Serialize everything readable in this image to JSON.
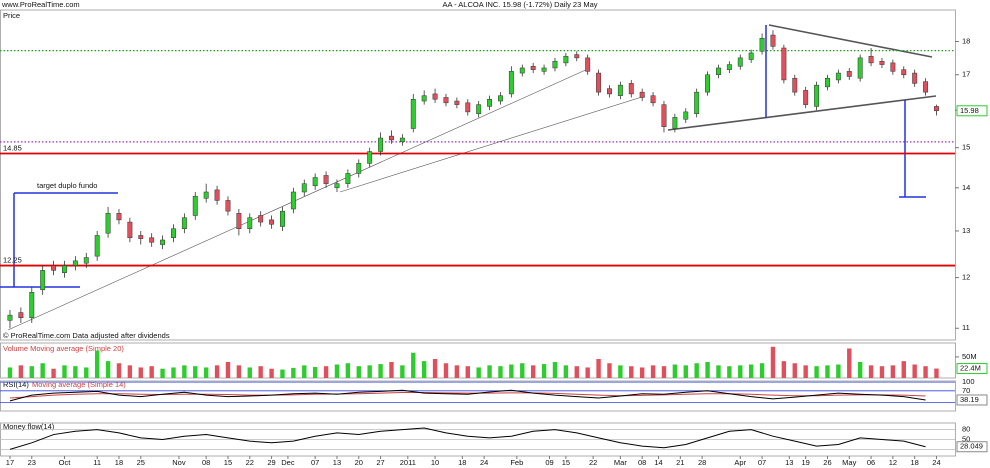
{
  "chart_data": {
    "type": "candlestick",
    "source": "www.ProRealTime.com",
    "title": "AA - ALCOA INC.   15.98 (-1.72%)   Daily  23 May",
    "price_label": "Price",
    "note": "© ProRealTime.com Data adjusted after dividends",
    "annotation": "target duplo fundo",
    "log_scale": true,
    "up_color": "#2ecc2e",
    "down_color": "#e0505c",
    "xlim": [
      -1.83,
      173.4
    ],
    "xticks": [
      {
        "value": 0,
        "label": "17"
      },
      {
        "value": 4,
        "label": "23"
      },
      {
        "value": 10,
        "label": "Oct"
      },
      {
        "value": 16,
        "label": "11"
      },
      {
        "value": 20,
        "label": "18"
      },
      {
        "value": 24,
        "label": "25"
      },
      {
        "value": 31,
        "label": "Nov"
      },
      {
        "value": 36,
        "label": "08"
      },
      {
        "value": 40,
        "label": "15"
      },
      {
        "value": 44,
        "label": "22"
      },
      {
        "value": 48,
        "label": "29"
      },
      {
        "value": 51,
        "label": "Dec"
      },
      {
        "value": 56,
        "label": "07"
      },
      {
        "value": 60,
        "label": "13"
      },
      {
        "value": 64,
        "label": "20"
      },
      {
        "value": 68,
        "label": "27"
      },
      {
        "value": 73,
        "label": "2011"
      },
      {
        "value": 78,
        "label": "10"
      },
      {
        "value": 83,
        "label": "18"
      },
      {
        "value": 87,
        "label": "24"
      },
      {
        "value": 93,
        "label": "Feb"
      },
      {
        "value": 99,
        "label": "09"
      },
      {
        "value": 102,
        "label": "15"
      },
      {
        "value": 107,
        "label": "22"
      },
      {
        "value": 112,
        "label": "Mar"
      },
      {
        "value": 116,
        "label": "08"
      },
      {
        "value": 119,
        "label": "14"
      },
      {
        "value": 123,
        "label": "21"
      },
      {
        "value": 127,
        "label": "28"
      },
      {
        "value": 134,
        "label": "Apr"
      },
      {
        "value": 138,
        "label": "07"
      },
      {
        "value": 143,
        "label": "13"
      },
      {
        "value": 146,
        "label": "19"
      },
      {
        "value": 150,
        "label": "26"
      },
      {
        "value": 154,
        "label": "May"
      },
      {
        "value": 158,
        "label": "06"
      },
      {
        "value": 162,
        "label": "12"
      },
      {
        "value": 166,
        "label": "18"
      },
      {
        "value": 170,
        "label": "24"
      }
    ],
    "ylim": [
      10.78,
      19.0
    ],
    "yticks": [
      11,
      12,
      13,
      14,
      15,
      16,
      17,
      18
    ],
    "current": 15.98,
    "x": [
      0,
      2,
      4,
      6,
      8,
      10,
      12,
      14,
      16,
      18,
      20,
      22,
      24,
      26,
      28,
      30,
      32,
      34,
      36,
      38,
      40,
      42,
      44,
      46,
      48,
      50,
      52,
      54,
      56,
      58,
      60,
      62,
      64,
      66,
      68,
      70,
      72,
      74,
      76,
      78,
      80,
      82,
      84,
      86,
      88,
      90,
      92,
      94,
      96,
      98,
      100,
      102,
      104,
      106,
      108,
      110,
      112,
      114,
      116,
      118,
      120,
      122,
      124,
      126,
      128,
      130,
      132,
      134,
      136,
      138,
      140,
      142,
      144,
      146,
      148,
      150,
      152,
      154,
      156,
      158,
      160,
      162,
      164,
      166,
      168,
      170
    ],
    "open": [
      11.15,
      11.3,
      11.2,
      11.75,
      12.25,
      12.1,
      12.25,
      12.3,
      12.45,
      12.95,
      13.4,
      13.2,
      12.9,
      12.85,
      12.7,
      12.85,
      13.05,
      13.35,
      13.75,
      13.95,
      13.7,
      13.4,
      13.05,
      13.35,
      13.25,
      13.1,
      13.5,
      13.9,
      14.05,
      14.3,
      14.0,
      14.1,
      14.35,
      14.6,
      14.9,
      15.3,
      15.15,
      15.5,
      16.25,
      16.45,
      16.35,
      16.25,
      16.2,
      15.9,
      16.1,
      16.25,
      16.45,
      17.05,
      17.25,
      17.1,
      17.2,
      17.35,
      17.6,
      17.5,
      17.05,
      16.6,
      16.4,
      16.75,
      16.5,
      16.4,
      16.15,
      15.5,
      15.75,
      15.9,
      16.5,
      17.0,
      17.15,
      17.25,
      17.45,
      17.7,
      18.2,
      17.8,
      16.9,
      16.55,
      16.1,
      16.65,
      16.85,
      17.1,
      16.9,
      17.55,
      17.4,
      17.35,
      17.15,
      17.05,
      16.8,
      16.1
    ],
    "high": [
      11.35,
      11.4,
      11.8,
      12.25,
      12.35,
      12.35,
      12.45,
      12.52,
      13.0,
      13.55,
      13.5,
      13.3,
      13.0,
      12.95,
      12.9,
      13.15,
      13.4,
      13.9,
      14.1,
      14.05,
      13.8,
      13.5,
      13.4,
      13.45,
      13.35,
      13.55,
      14.0,
      14.2,
      14.35,
      14.4,
      14.2,
      14.45,
      14.7,
      15.0,
      15.4,
      15.45,
      15.35,
      16.45,
      16.55,
      16.6,
      16.45,
      16.35,
      16.3,
      16.25,
      16.4,
      16.5,
      17.25,
      17.3,
      17.35,
      17.3,
      17.5,
      17.65,
      17.7,
      17.6,
      17.15,
      16.7,
      16.8,
      16.85,
      16.6,
      16.5,
      16.25,
      15.9,
      16.05,
      16.6,
      17.1,
      17.3,
      17.4,
      17.6,
      17.75,
      18.25,
      18.35,
      17.9,
      17.0,
      16.65,
      16.8,
      17.0,
      17.15,
      17.2,
      17.6,
      17.8,
      17.5,
      17.45,
      17.25,
      17.15,
      16.9,
      16.15
    ],
    "low": [
      11.0,
      11.1,
      11.1,
      11.65,
      12.05,
      12.0,
      12.15,
      12.2,
      12.35,
      12.85,
      13.15,
      12.75,
      12.7,
      12.65,
      12.6,
      12.75,
      12.95,
      13.25,
      13.65,
      13.6,
      13.35,
      12.9,
      12.95,
      13.1,
      13.05,
      13.0,
      13.4,
      13.8,
      13.95,
      14.0,
      13.9,
      14.0,
      14.25,
      14.5,
      14.8,
      15.1,
      15.05,
      15.4,
      16.15,
      16.2,
      16.1,
      16.05,
      15.85,
      15.8,
      16.0,
      16.15,
      16.35,
      16.95,
      17.05,
      17.0,
      17.1,
      17.25,
      17.4,
      17.0,
      16.4,
      16.35,
      16.3,
      16.35,
      16.25,
      16.1,
      15.4,
      15.4,
      15.65,
      15.8,
      16.4,
      16.9,
      17.05,
      17.15,
      17.35,
      17.6,
      17.75,
      16.75,
      16.4,
      16.05,
      16.0,
      16.55,
      16.75,
      16.85,
      16.8,
      17.25,
      17.2,
      17.0,
      16.9,
      16.65,
      16.4,
      15.85
    ],
    "close": [
      11.25,
      11.2,
      11.7,
      12.15,
      12.15,
      12.25,
      12.35,
      12.42,
      12.9,
      13.4,
      13.25,
      12.85,
      12.83,
      12.75,
      12.8,
      13.05,
      13.3,
      13.8,
      13.9,
      13.7,
      13.45,
      13.05,
      13.3,
      13.2,
      13.15,
      13.45,
      13.9,
      14.1,
      14.25,
      14.1,
      14.1,
      14.35,
      14.6,
      14.9,
      15.25,
      15.2,
      15.25,
      16.3,
      16.4,
      16.3,
      16.2,
      16.15,
      15.95,
      16.15,
      16.3,
      16.4,
      17.1,
      17.2,
      17.15,
      17.2,
      17.4,
      17.55,
      17.5,
      17.1,
      16.5,
      16.45,
      16.7,
      16.45,
      16.35,
      16.2,
      15.55,
      15.8,
      15.95,
      16.5,
      17,
      17.2,
      17.3,
      17.5,
      17.65,
      18.1,
      17.85,
      16.85,
      16.5,
      16.15,
      16.7,
      16.9,
      17.05,
      16.95,
      17.5,
      17.35,
      17.3,
      17.1,
      17,
      16.75,
      16.5,
      15.98
    ],
    "levels": [
      {
        "value": 14.85,
        "label": "14.85",
        "color": "#e00000",
        "style": "solid"
      },
      {
        "value": 12.25,
        "label": "12.25",
        "color": "#e00000",
        "style": "solid"
      },
      {
        "value": 17.72,
        "color": "#20a020",
        "style": "dotted"
      },
      {
        "value": 15.15,
        "color": "#9a30c8",
        "style": "dotted"
      }
    ],
    "volume": {
      "title": "Volume Moving average (Simple 20)",
      "ylim": [
        0,
        83
      ],
      "yticks": [
        {
          "value": 50,
          "label": "50M"
        }
      ],
      "current": {
        "value": 22.4,
        "label": "22.4M"
      },
      "values": [
        25,
        30,
        28,
        35,
        22,
        30,
        28,
        25,
        65,
        40,
        35,
        30,
        25,
        28,
        22,
        25,
        30,
        28,
        25,
        30,
        38,
        30,
        25,
        28,
        22,
        20,
        24,
        30,
        26,
        28,
        32,
        35,
        28,
        30,
        33,
        38,
        30,
        60,
        40,
        45,
        35,
        30,
        28,
        25,
        30,
        28,
        32,
        35,
        30,
        33,
        38,
        30,
        28,
        25,
        45,
        35,
        30,
        28,
        25,
        30,
        28,
        32,
        30,
        35,
        38,
        30,
        28,
        30,
        32,
        35,
        74,
        40,
        35,
        30,
        28,
        30,
        32,
        70,
        38,
        30,
        28,
        30,
        40,
        32,
        28,
        22.4
      ]
    },
    "rsi": {
      "title": "RSI(14)",
      "ma_title": "Moving average (Simple 14)",
      "color": "#000000",
      "ma_color": "#d04040",
      "ylim": [
        0,
        104
      ],
      "yticks": [
        30,
        70,
        100
      ],
      "current": 38.19,
      "x": [
        0,
        4,
        8,
        12,
        16,
        20,
        24,
        28,
        32,
        36,
        40,
        44,
        48,
        52,
        56,
        60,
        64,
        68,
        72,
        76,
        80,
        84,
        88,
        92,
        96,
        100,
        104,
        108,
        112,
        116,
        120,
        124,
        128,
        132,
        136,
        140,
        144,
        148,
        152,
        156,
        160,
        164,
        168
      ],
      "values": [
        35,
        55,
        62,
        65,
        68,
        55,
        50,
        58,
        65,
        55,
        50,
        52,
        55,
        60,
        62,
        58,
        65,
        68,
        72,
        62,
        60,
        58,
        66,
        72,
        62,
        55,
        50,
        45,
        52,
        60,
        58,
        65,
        70,
        60,
        50,
        42,
        48,
        55,
        62,
        58,
        55,
        50,
        38
      ],
      "ma": [
        45,
        50,
        55,
        58,
        60,
        60,
        58,
        57,
        58,
        58,
        57,
        55,
        55,
        56,
        58,
        59,
        60,
        62,
        64,
        64,
        63,
        62,
        62,
        63,
        63,
        61,
        58,
        55,
        53,
        54,
        56,
        58,
        60,
        60,
        58,
        55,
        53,
        53,
        55,
        56,
        56,
        55,
        52
      ]
    },
    "mfi": {
      "title": "Money flow(14)",
      "color": "#000000",
      "ylim": [
        0,
        100
      ],
      "yticks": [
        20,
        50,
        80
      ],
      "current": 28.049,
      "x": [
        0,
        4,
        8,
        12,
        16,
        20,
        24,
        28,
        32,
        36,
        40,
        44,
        48,
        52,
        56,
        60,
        64,
        68,
        72,
        76,
        80,
        84,
        88,
        92,
        96,
        100,
        104,
        108,
        112,
        116,
        120,
        124,
        128,
        132,
        136,
        140,
        144,
        148,
        152,
        156,
        160,
        164,
        168
      ],
      "values": [
        20,
        40,
        65,
        75,
        80,
        70,
        55,
        50,
        60,
        65,
        55,
        45,
        40,
        45,
        60,
        70,
        65,
        75,
        80,
        85,
        70,
        60,
        55,
        60,
        75,
        80,
        70,
        55,
        40,
        30,
        25,
        35,
        55,
        75,
        80,
        60,
        45,
        30,
        35,
        55,
        50,
        45,
        28
      ]
    }
  }
}
